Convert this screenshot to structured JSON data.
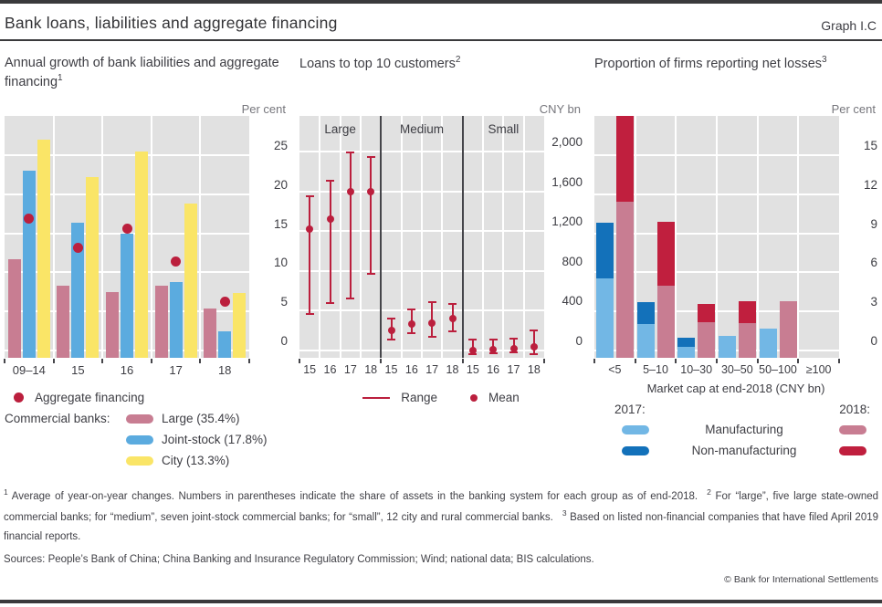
{
  "header": {
    "title": "Bank loans, liabilities and aggregate financing",
    "graph_label": "Graph I.C"
  },
  "chart_data": [
    {
      "type": "bar",
      "title": "Annual growth of bank liabilities and aggregate financing",
      "title_sup": "1",
      "unit": "Per cent",
      "categories": [
        "09–14",
        "15",
        "16",
        "17",
        "18"
      ],
      "series": [
        {
          "name": "Large (35.4%)",
          "color": "#c87d92",
          "values": [
            11.7,
            8.3,
            7.5,
            8.3,
            5.4
          ]
        },
        {
          "name": "Joint-stock (17.8%)",
          "color": "#5babdf",
          "values": [
            23.0,
            16.3,
            15.0,
            8.7,
            2.4
          ]
        },
        {
          "name": "City (13.3%)",
          "color": "#fae567",
          "values": [
            27.0,
            22.2,
            25.5,
            18.8,
            7.3
          ]
        }
      ],
      "dot_series": {
        "name": "Aggregate financing",
        "color": "#bb1f3d",
        "values": [
          16.9,
          13.1,
          15.6,
          11.4,
          6.2
        ]
      },
      "legend_intro": "Commercial banks:",
      "ylim": [
        0,
        30
      ],
      "yticks": [
        0,
        5,
        10,
        15,
        20,
        25
      ],
      "ytick_labels": [
        "0",
        "5",
        "10",
        "15",
        "20",
        "25"
      ],
      "grid": true,
      "legend_position": "below"
    },
    {
      "type": "range-mean",
      "title": "Loans to top 10 customers",
      "title_sup": "2",
      "unit": "CNY bn",
      "groups": [
        "Large",
        "Medium",
        "Small"
      ],
      "years": [
        "15",
        "16",
        "17",
        "18"
      ],
      "range_color": "#bb1f3d",
      "points": [
        {
          "group": "Large",
          "year": "15",
          "min": 370,
          "max": 1550,
          "mean": 1220
        },
        {
          "group": "Large",
          "year": "16",
          "min": 480,
          "max": 1710,
          "mean": 1320
        },
        {
          "group": "Large",
          "year": "17",
          "min": 520,
          "max": 1990,
          "mean": 1600
        },
        {
          "group": "Large",
          "year": "18",
          "min": 770,
          "max": 1950,
          "mean": 1600
        },
        {
          "group": "Medium",
          "year": "15",
          "min": 110,
          "max": 320,
          "mean": 200
        },
        {
          "group": "Medium",
          "year": "16",
          "min": 170,
          "max": 410,
          "mean": 270
        },
        {
          "group": "Medium",
          "year": "17",
          "min": 140,
          "max": 490,
          "mean": 280
        },
        {
          "group": "Medium",
          "year": "18",
          "min": 190,
          "max": 470,
          "mean": 320
        },
        {
          "group": "Small",
          "year": "15",
          "min": -40,
          "max": 110,
          "mean": 0
        },
        {
          "group": "Small",
          "year": "16",
          "min": -25,
          "max": 110,
          "mean": 5
        },
        {
          "group": "Small",
          "year": "17",
          "min": -15,
          "max": 120,
          "mean": 15
        },
        {
          "group": "Small",
          "year": "18",
          "min": -40,
          "max": 200,
          "mean": 40
        }
      ],
      "legend": {
        "range_label": "Range",
        "mean_label": "Mean"
      },
      "ylim": [
        0,
        2360
      ],
      "yticks": [
        0,
        400,
        800,
        1200,
        1600,
        2000
      ],
      "ytick_labels": [
        "0",
        "400",
        "800",
        "1,200",
        "1,600",
        "2,000"
      ],
      "grid": true
    },
    {
      "type": "stacked-bar",
      "title": "Proportion of firms reporting net losses",
      "title_sup": "3",
      "unit": "Per cent",
      "categories": [
        "<5",
        "5–10",
        "10–30",
        "30–50",
        "50–100",
        "≥100"
      ],
      "xlabel": "Market cap at end-2018 (CNY bn)",
      "year_groups": [
        {
          "label": "2017:",
          "segments": [
            {
              "name": "Manufacturing",
              "color": "#72b7e5",
              "values": [
                5.5,
                2.0,
                0.3,
                1.1,
                1.7,
                0
              ]
            },
            {
              "name": "Non-manufacturing",
              "color": "#1371ba",
              "values": [
                4.3,
                1.7,
                0.7,
                0,
                0,
                0
              ]
            }
          ]
        },
        {
          "label": "2018:",
          "segments": [
            {
              "name": "Manufacturing",
              "color": "#c87d92",
              "values": [
                11.4,
                5.0,
                2.2,
                2.1,
                3.8,
                0
              ]
            },
            {
              "name": "Non-manufacturing",
              "color": "#c01f3e",
              "values": [
                6.6,
                4.9,
                1.4,
                1.7,
                0,
                0
              ]
            }
          ]
        }
      ],
      "ylim": [
        0,
        18
      ],
      "yticks": [
        0,
        3,
        6,
        9,
        12,
        15
      ],
      "ytick_labels": [
        "0",
        "3",
        "6",
        "9",
        "12",
        "15"
      ],
      "grid": true
    }
  ],
  "footnotes": [
    {
      "sup": "1",
      "text": "Average of year-on-year changes. Numbers in parentheses indicate the share of assets in the banking system for each group as of end-2018."
    },
    {
      "sup": "2",
      "text": "For “large”, five large state-owned commercial banks; for “medium”, seven joint-stock commercial banks; for “small”, 12 city and rural commercial banks."
    },
    {
      "sup": "3",
      "text": "Based on listed non-financial companies that have filed April 2019 financial reports."
    }
  ],
  "sources": "Sources: People’s Bank of China; China Banking and Insurance Regulatory Commission; Wind; national data; BIS calculations.",
  "copyright": "© Bank for International Settlements"
}
